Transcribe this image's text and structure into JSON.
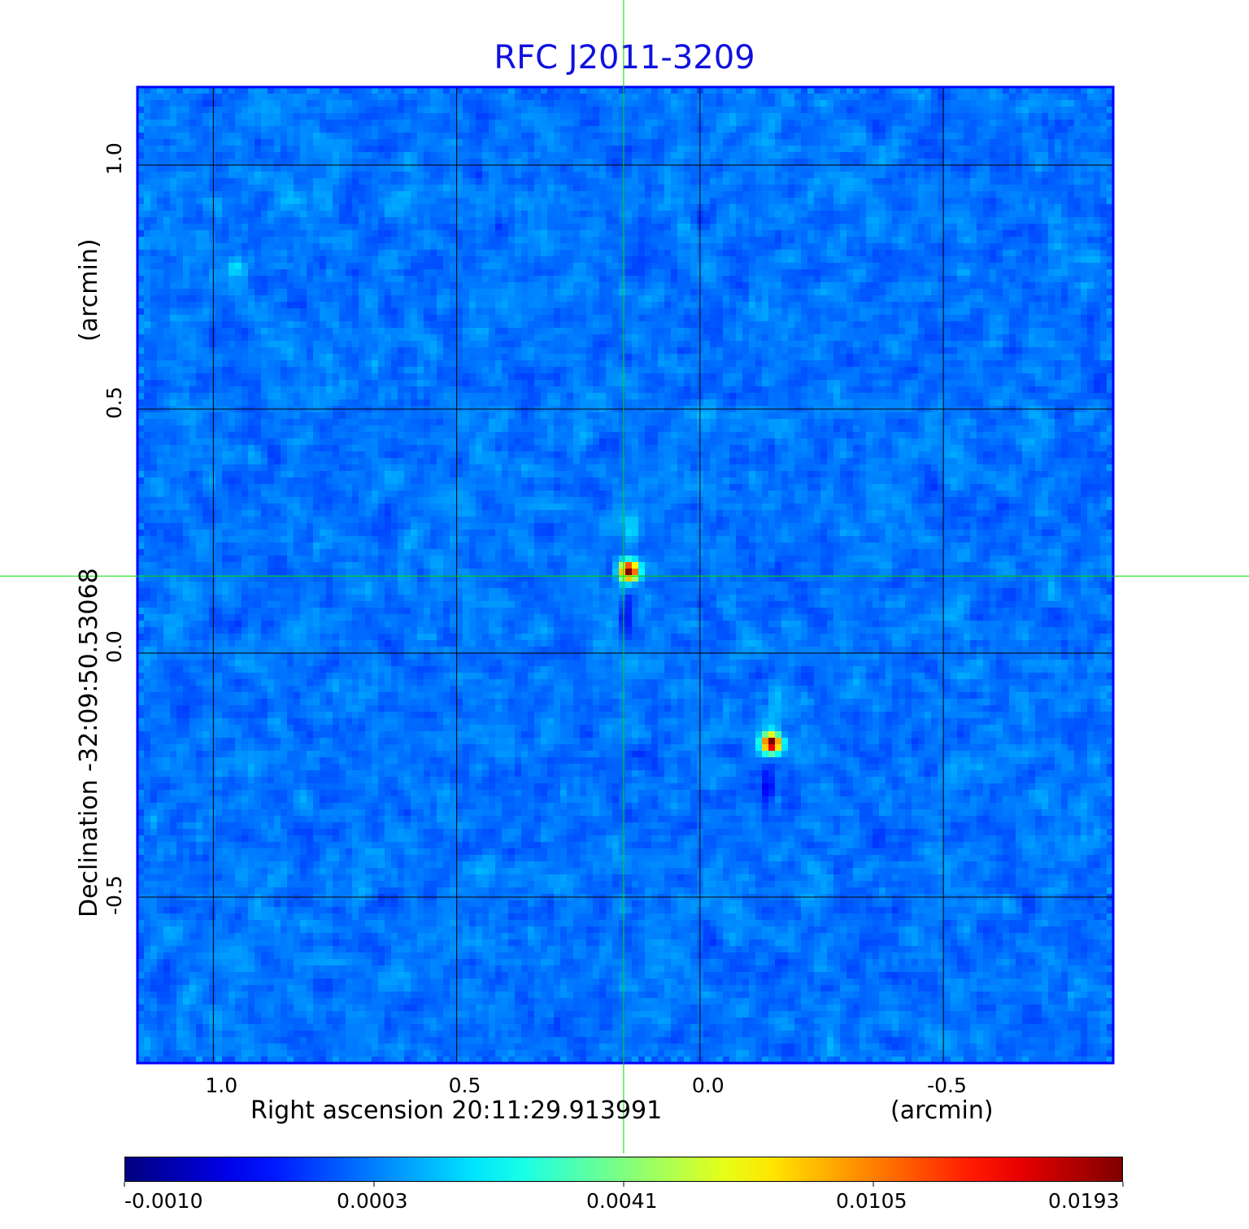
{
  "chart_data": {
    "type": "heatmap",
    "title": "RFC J2011-3209",
    "xlabel": "Right ascension  20:11:29.913991",
    "xunit": "(arcmin)",
    "ylabel": "Declination  -32:09:50.53068",
    "yunit": "(arcmin)",
    "xlim": [
      1.156,
      -0.849
    ],
    "ylim": [
      -0.84,
      1.16
    ],
    "xticks": [
      1.0,
      0.5,
      0.0,
      -0.5
    ],
    "xtick_labels": [
      "1.0",
      "0.5",
      "0.0",
      "-0.5"
    ],
    "yticks": [
      1.0,
      0.5,
      0.0,
      -0.5
    ],
    "ytick_labels": [
      "1.0",
      "0.5",
      "0.0",
      "-0.5"
    ],
    "grid": true,
    "crosshair": {
      "ra": 0.157,
      "dec": 0.158,
      "color": "#00dd00"
    },
    "sources": [
      {
        "ra": 0.152,
        "dec": 0.175,
        "peak": 0.0193
      },
      {
        "ra": -0.14,
        "dec": -0.178,
        "peak": 0.0193
      },
      {
        "ra": 0.962,
        "dec": 0.797,
        "peak": 0.0005
      }
    ],
    "colorbar": {
      "colormap": "jet",
      "tick_values": [
        -0.001,
        0.0003,
        0.0041,
        0.0105,
        0.0193
      ],
      "tick_labels": [
        "-0.0010",
        "0.0003",
        "0.0041",
        "0.0105",
        "0.0193"
      ]
    },
    "frame_color": "#0000ff"
  }
}
